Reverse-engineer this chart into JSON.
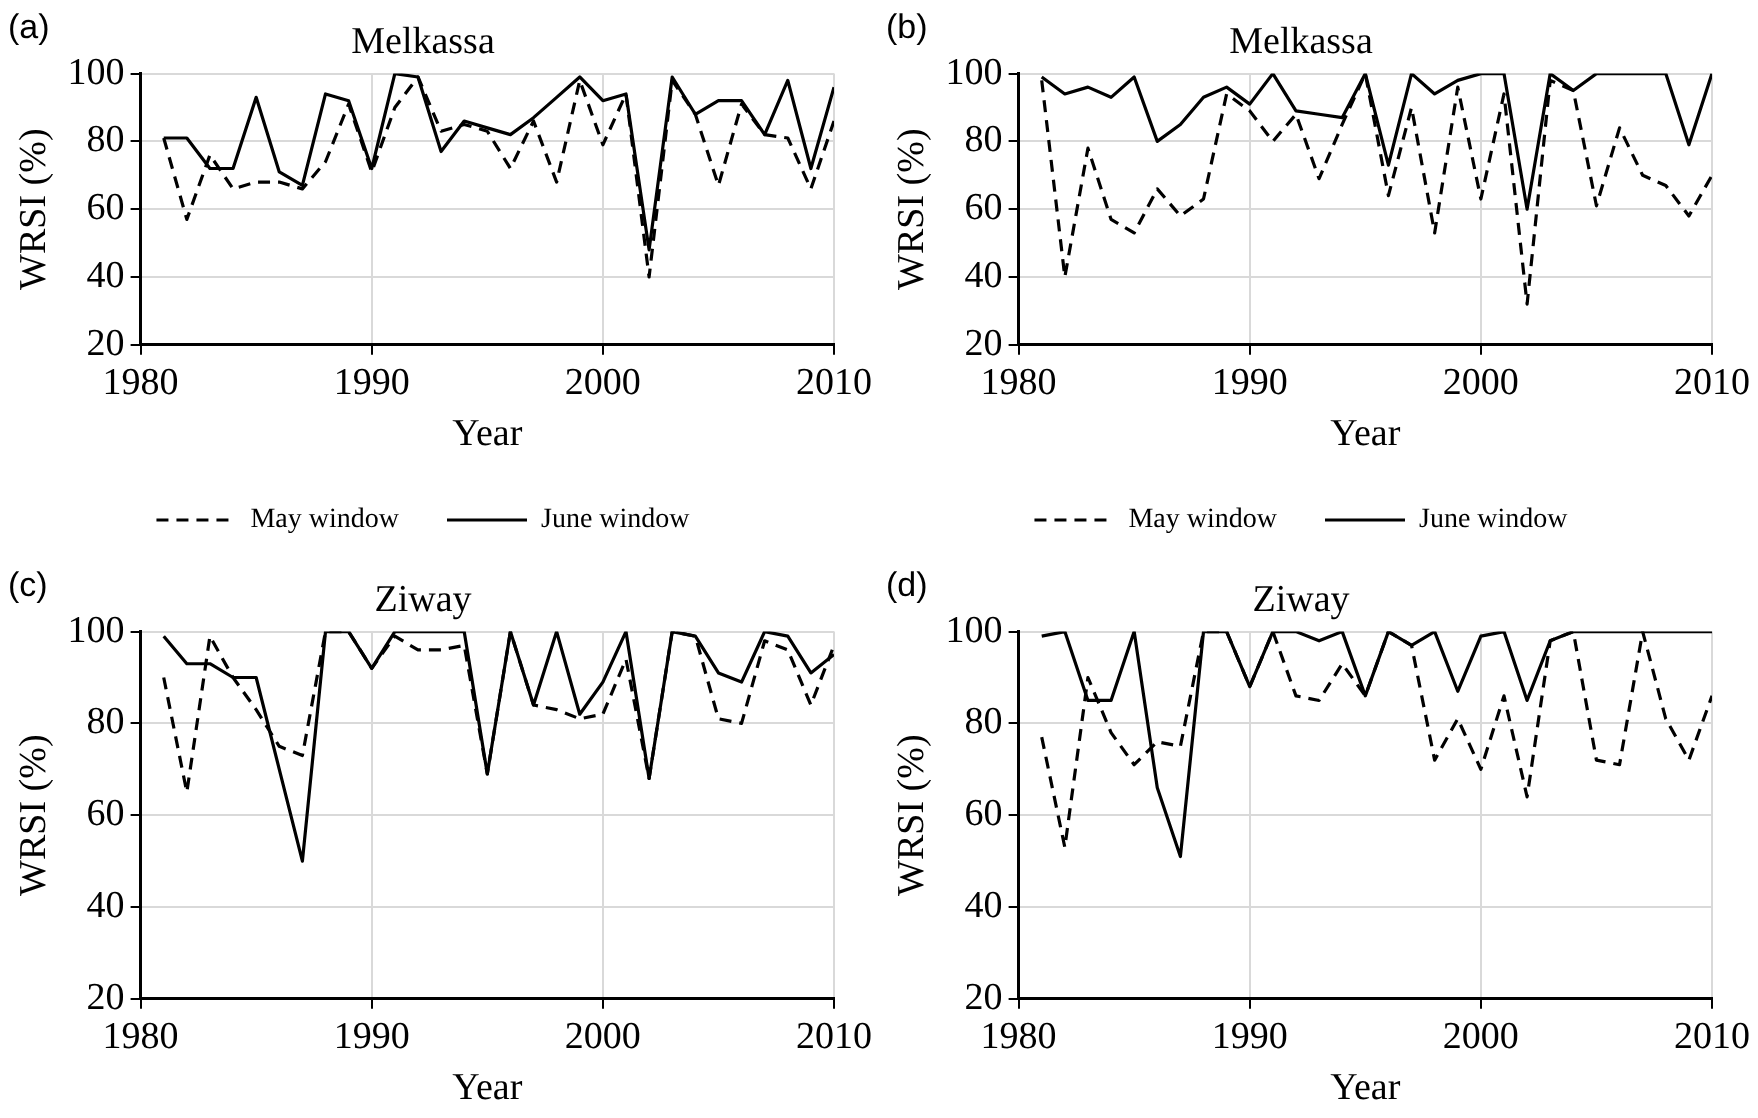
{
  "chart_data": [
    {
      "type": "line",
      "title": "Melkassa",
      "annotations": [
        "(a)"
      ],
      "xlabel": "Year",
      "ylabel": "WRSI (%)",
      "x": [
        1981,
        1982,
        1983,
        1984,
        1985,
        1986,
        1987,
        1988,
        1989,
        1990,
        1991,
        1992,
        1993,
        1994,
        1995,
        1996,
        1997,
        1998,
        1999,
        2000,
        2001,
        2002,
        2003,
        2004,
        2005,
        2006,
        2007,
        2008,
        2009,
        2010
      ],
      "xlim": [
        1980,
        2010
      ],
      "xticks": [
        1980,
        1990,
        2000,
        2010
      ],
      "ylim": [
        20,
        100
      ],
      "yticks": [
        20,
        40,
        60,
        80,
        100
      ],
      "grid": true,
      "legend": "bottom",
      "series": [
        {
          "name": "May window",
          "color": "#000000",
          "line_style": "dashed",
          "values": [
            81,
            57,
            76,
            66,
            68,
            68,
            66,
            74,
            91,
            71,
            90,
            99,
            83,
            85,
            83,
            72,
            86,
            68,
            98,
            79,
            94,
            40,
            98,
            88,
            67,
            91,
            82,
            81,
            66,
            86
          ]
        },
        {
          "name": "June window",
          "color": "#000000",
          "line_style": "solid",
          "values": [
            81,
            81,
            72,
            72,
            93,
            71,
            67,
            94,
            92,
            72,
            100,
            99,
            77,
            86,
            84,
            82,
            87,
            93,
            99,
            92,
            94,
            48,
            99,
            88,
            92,
            92,
            82,
            98,
            72,
            96
          ]
        }
      ]
    },
    {
      "type": "line",
      "title": "Melkassa",
      "annotations": [
        "(b)"
      ],
      "xlabel": "Year",
      "ylabel": "WRSI (%)",
      "x": [
        1981,
        1982,
        1983,
        1984,
        1985,
        1986,
        1987,
        1988,
        1989,
        1990,
        1991,
        1992,
        1993,
        1994,
        1995,
        1996,
        1997,
        1998,
        1999,
        2000,
        2001,
        2002,
        2003,
        2004,
        2005,
        2006,
        2007,
        2008,
        2009,
        2010
      ],
      "xlim": [
        1980,
        2010
      ],
      "xticks": [
        1980,
        1990,
        2000,
        2010
      ],
      "ylim": [
        20,
        100
      ],
      "yticks": [
        20,
        40,
        60,
        80,
        100
      ],
      "grid": true,
      "legend": "bottom",
      "series": [
        {
          "name": "May window",
          "color": "#000000",
          "line_style": "dashed",
          "values": [
            98,
            40,
            78,
            57,
            53,
            66,
            58,
            63,
            94,
            89,
            80,
            88,
            69,
            85,
            100,
            64,
            90,
            53,
            96,
            63,
            94,
            32,
            98,
            95,
            61,
            84,
            70,
            67,
            58,
            70
          ]
        },
        {
          "name": "June window",
          "color": "#000000",
          "line_style": "solid",
          "values": [
            99,
            94,
            96,
            93,
            99,
            80,
            85,
            93,
            96,
            91,
            100,
            89,
            88,
            87,
            100,
            73,
            100,
            94,
            98,
            100,
            100,
            60,
            100,
            95,
            100,
            100,
            100,
            100,
            79,
            100
          ]
        }
      ]
    },
    {
      "type": "line",
      "title": "Ziway",
      "annotations": [
        "(c)"
      ],
      "xlabel": "Year",
      "ylabel": "WRSI (%)",
      "x": [
        1981,
        1982,
        1983,
        1984,
        1985,
        1986,
        1987,
        1988,
        1989,
        1990,
        1991,
        1992,
        1993,
        1994,
        1995,
        1996,
        1997,
        1998,
        1999,
        2000,
        2001,
        2002,
        2003,
        2004,
        2005,
        2006,
        2007,
        2008,
        2009,
        2010
      ],
      "xlim": [
        1980,
        2010
      ],
      "xticks": [
        1980,
        1990,
        2000,
        2010
      ],
      "ylim": [
        20,
        100
      ],
      "yticks": [
        20,
        40,
        60,
        80,
        100
      ],
      "grid": true,
      "series": [
        {
          "color": "#000000",
          "line_style": "dashed",
          "values": [
            90,
            65,
            99,
            90,
            83,
            75,
            73,
            100,
            100,
            92,
            99,
            96,
            96,
            97,
            69,
            100,
            84,
            83,
            81,
            82,
            94,
            68,
            100,
            99,
            81,
            80,
            98,
            96,
            84,
            97
          ]
        },
        {
          "color": "#000000",
          "line_style": "solid",
          "values": [
            99,
            93,
            93,
            90,
            90,
            70,
            50,
            100,
            100,
            92,
            100,
            100,
            100,
            100,
            69,
            100,
            84,
            100,
            82,
            89,
            100,
            68,
            100,
            99,
            91,
            89,
            100,
            99,
            91,
            95
          ]
        }
      ]
    },
    {
      "type": "line",
      "title": "Ziway",
      "annotations": [
        "(d)"
      ],
      "xlabel": "Year",
      "ylabel": "WRSI (%)",
      "x": [
        1981,
        1982,
        1983,
        1984,
        1985,
        1986,
        1987,
        1988,
        1989,
        1990,
        1991,
        1992,
        1993,
        1994,
        1995,
        1996,
        1997,
        1998,
        1999,
        2000,
        2001,
        2002,
        2003,
        2004,
        2005,
        2006,
        2007,
        2008,
        2009,
        2010
      ],
      "xlim": [
        1980,
        2010
      ],
      "xticks": [
        1980,
        1990,
        2000,
        2010
      ],
      "ylim": [
        20,
        100
      ],
      "yticks": [
        20,
        40,
        60,
        80,
        100
      ],
      "grid": true,
      "series": [
        {
          "color": "#000000",
          "line_style": "dashed",
          "values": [
            77,
            53,
            90,
            78,
            71,
            76,
            75,
            100,
            100,
            88,
            100,
            86,
            85,
            93,
            86,
            100,
            97,
            72,
            81,
            70,
            86,
            64,
            98,
            100,
            72,
            71,
            100,
            81,
            72,
            86
          ]
        },
        {
          "color": "#000000",
          "line_style": "solid",
          "values": [
            99,
            100,
            85,
            85,
            100,
            66,
            51,
            100,
            100,
            88,
            100,
            100,
            98,
            100,
            86,
            100,
            97,
            100,
            87,
            99,
            100,
            85,
            98,
            100,
            100,
            100,
            100,
            100,
            100,
            100
          ]
        }
      ]
    }
  ]
}
